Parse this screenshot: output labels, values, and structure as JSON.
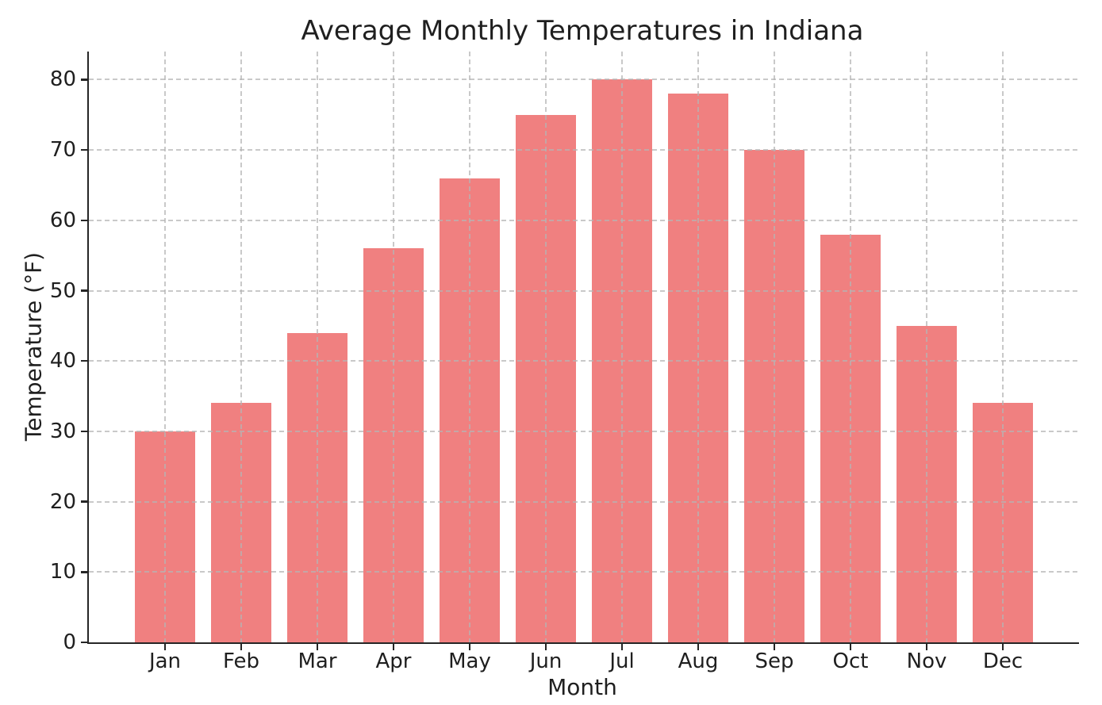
{
  "figure": {
    "title": "Average Monthly Temperatures in Indiana",
    "xlabel": "Month",
    "ylabel": "Temperature (°F)"
  },
  "chart_data": {
    "type": "bar",
    "title": "Average Monthly Temperatures in Indiana",
    "xlabel": "Month",
    "ylabel": "Temperature (°F)",
    "categories": [
      "Jan",
      "Feb",
      "Mar",
      "Apr",
      "May",
      "Jun",
      "Jul",
      "Aug",
      "Sep",
      "Oct",
      "Nov",
      "Dec"
    ],
    "values": [
      30,
      34,
      44,
      56,
      66,
      75,
      80,
      78,
      70,
      58,
      45,
      34
    ],
    "yticks": [
      0,
      10,
      20,
      30,
      40,
      50,
      60,
      70,
      80
    ],
    "ylim": [
      0,
      84
    ],
    "bar_color": "#f08080",
    "grid": {
      "show": true,
      "style": "dashed",
      "color": "#cccccc",
      "axes": "both",
      "above_bars": true
    },
    "spines": [
      "left",
      "bottom"
    ],
    "legend": "none",
    "background": "#ffffff"
  }
}
